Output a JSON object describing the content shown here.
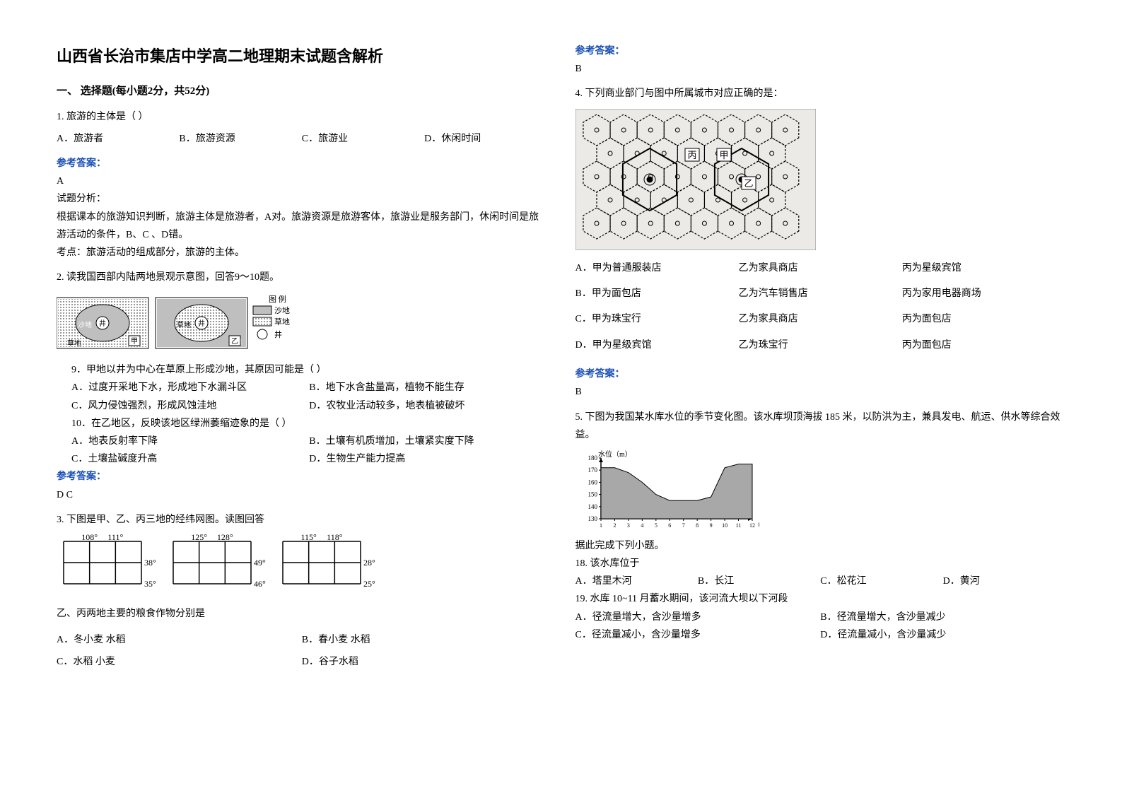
{
  "title": "山西省长治市集店中学高二地理期末试题含解析",
  "section1_heading": "一、 选择题(每小题2分，共52分)",
  "ref_label": "参考答案：",
  "q1": {
    "stem": "1. 旅游的主体是（       ）",
    "opts": [
      "A．旅游者",
      "B．旅游资源",
      "C．旅游业",
      "D．休闲时间"
    ],
    "ans": "A",
    "parse_head": "试题分析：",
    "parse_body": "根据课本的旅游知识判断，旅游主体是旅游者，A对。旅游资源是旅游客体，旅游业是服务部门，休闲时间是旅游活动的条件，B、C 、D错。",
    "kp": "考点：旅游活动的组成部分，旅游的主体。"
  },
  "q2": {
    "stem": "2. 读我国西部内陆两地景观示意图，回答9～10题。",
    "legend": {
      "title": "图 例",
      "items": [
        "沙地",
        "草地",
        "井"
      ]
    },
    "map_labels": {
      "A_center": "井",
      "A_ring": "沙地",
      "A_outer": "草地",
      "A_tag": "甲",
      "B_center": "井",
      "B_ring": "草地",
      "B_outer": "沙地",
      "B_tag": "乙"
    },
    "sub9": "9．甲地以井为中心在草原上形成沙地，其原因可能是（    ）",
    "sub9_opts": [
      "A．过度开采地下水，形成地下水漏斗区",
      "B．地下水含盐量高，植物不能生存",
      "C．风力侵蚀强烈，形成风蚀洼地",
      "D．农牧业活动较多，地表植被破坏"
    ],
    "sub10": "10．在乙地区，反映该地区绿洲萎缩迹象的是（    ）",
    "sub10_opts": [
      "A．地表反射率下降",
      "B．土壤有机质增加，土壤紧实度下降",
      "C．土壤盐碱度升高",
      "D．生物生产能力提高"
    ],
    "ans": "D   C"
  },
  "q3": {
    "stem": "3. 下图是甲、乙、丙三地的经纬网图。读图回答",
    "grids": [
      {
        "lons": [
          "108°",
          "111°"
        ],
        "lats": [
          "38°",
          "35°"
        ]
      },
      {
        "lons": [
          "125°",
          "128°"
        ],
        "lats": [
          "49°",
          "46°"
        ]
      },
      {
        "lons": [
          "115°",
          "118°"
        ],
        "lats": [
          "28°",
          "25°"
        ]
      }
    ],
    "sub": "乙、丙两地主要的粮食作物分别是",
    "opts": [
      "A．冬小麦 水稻",
      "B．春小麦 水稻",
      "C．水稻 小麦",
      "D．谷子水稻"
    ],
    "ans": "B"
  },
  "q4": {
    "stem": "4. 下列商业部门与图中所属城市对应正确的是：",
    "labels": [
      "甲",
      "乙",
      "丙"
    ],
    "opts": [
      "A．甲为普通服装店        乙为家具商店           丙为星级宾馆",
      "B．甲为面包店               乙为汽车销售店      丙为家用电器商场",
      "C．甲为珠宝行               乙为家具商店           丙为面包店",
      "D．甲为星级宾馆           乙为珠宝行               丙为面包店"
    ],
    "optcells": [
      [
        "A．甲为普通服装店",
        "乙为家具商店",
        "丙为星级宾馆"
      ],
      [
        "B．甲为面包店",
        "乙为汽车销售店",
        "丙为家用电器商场"
      ],
      [
        "C．甲为珠宝行",
        "乙为家具商店",
        "丙为面包店"
      ],
      [
        "D．甲为星级宾馆",
        "乙为珠宝行",
        "丙为面包店"
      ]
    ],
    "ans": "B"
  },
  "q5": {
    "stem": "5. 下图为我国某水库水位的季节变化图。该水库坝顶海拔 185 米，以防洪为主，兼具发电、航运、供水等综合效益。",
    "chart": {
      "type": "area",
      "ylabel": "水位（m）",
      "xlabel": "（月份）",
      "x": [
        1,
        2,
        3,
        4,
        5,
        6,
        7,
        8,
        9,
        10,
        11,
        12
      ],
      "y": [
        172,
        172,
        168,
        160,
        150,
        145,
        145,
        145,
        148,
        172,
        175,
        175
      ],
      "ylim": [
        130,
        180
      ],
      "yticks": [
        130,
        140,
        150,
        160,
        170,
        180
      ],
      "line_color": "#000000",
      "fill_color": "#a8a8a8",
      "bg": "#ffffff"
    },
    "cont": "据此完成下列小题。",
    "sub18": "18.  该水库位于",
    "sub18_opts": [
      "A．塔里木河",
      "B．长江",
      "C．松花江",
      "D．黄河"
    ],
    "sub19": "19.  水库 10~11 月蓄水期间，该河流大坝以下河段",
    "sub19_opts": [
      "A．径流量增大，含沙量增多",
      "B．径流量增大，含沙量减少",
      "C．径流量减小，含沙量增多",
      "D．径流量减小，含沙量减少"
    ]
  }
}
